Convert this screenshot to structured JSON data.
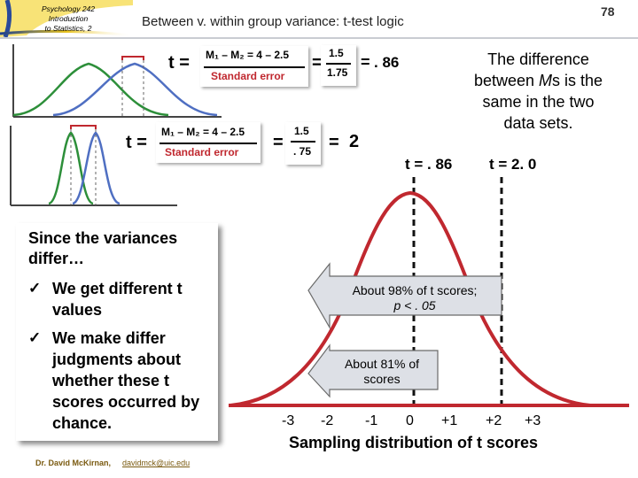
{
  "header": {
    "course_line1": "Psychology 242",
    "course_line2": "Introduction",
    "course_line3": "to Statistics, 2",
    "title": "Between v. within group variance: t-test logic",
    "slide_number": "78"
  },
  "note": {
    "line1": "The difference",
    "line2_pre": "between ",
    "line2_italic": "M",
    "line2_post": "s is the",
    "line3": "same in the two",
    "line4": "data sets."
  },
  "formula_top": {
    "t_label": "t =",
    "numerator": "M₁ – M₂ = 4 – 2.5",
    "denominator": "Standard error",
    "eq1": "=",
    "frac_num": "1.5",
    "frac_den": "1.75",
    "eq2": "=",
    "result": ". 86"
  },
  "formula_bottom": {
    "t_label": "t =",
    "numerator": "M₁ – M₂ = 4 – 2.5",
    "denominator": "Standard error",
    "eq1": "=",
    "frac_num": "1.5",
    "frac_den": ". 75",
    "eq2": "=",
    "result": "2"
  },
  "explain": {
    "heading": "Since the variances differ…",
    "items": [
      {
        "check": "✓",
        "text": "We get different t values"
      },
      {
        "check": "✓",
        "text": "We make differ judgments about whether these t scores occurred by chance."
      }
    ]
  },
  "distribution": {
    "t_result_1": "t = . 86",
    "t_result_2": "t = 2. 0",
    "ticks": [
      "-3",
      "-2",
      "-1",
      "0",
      "+1",
      "+2",
      "+3"
    ],
    "caption": "Sampling distribution of t scores",
    "callout_98_line1": "About 98% of t scores;",
    "callout_98_line2": "p < . 05",
    "callout_81_line1": "About 81% of",
    "callout_81_line2": "scores",
    "colors": {
      "curve": "#c0282f",
      "arrow_fill": "#dde0e6",
      "dashed": "#111111"
    }
  },
  "footer": {
    "author": "Dr. David McKirnan,",
    "email": "davidmck@uic.edu"
  }
}
